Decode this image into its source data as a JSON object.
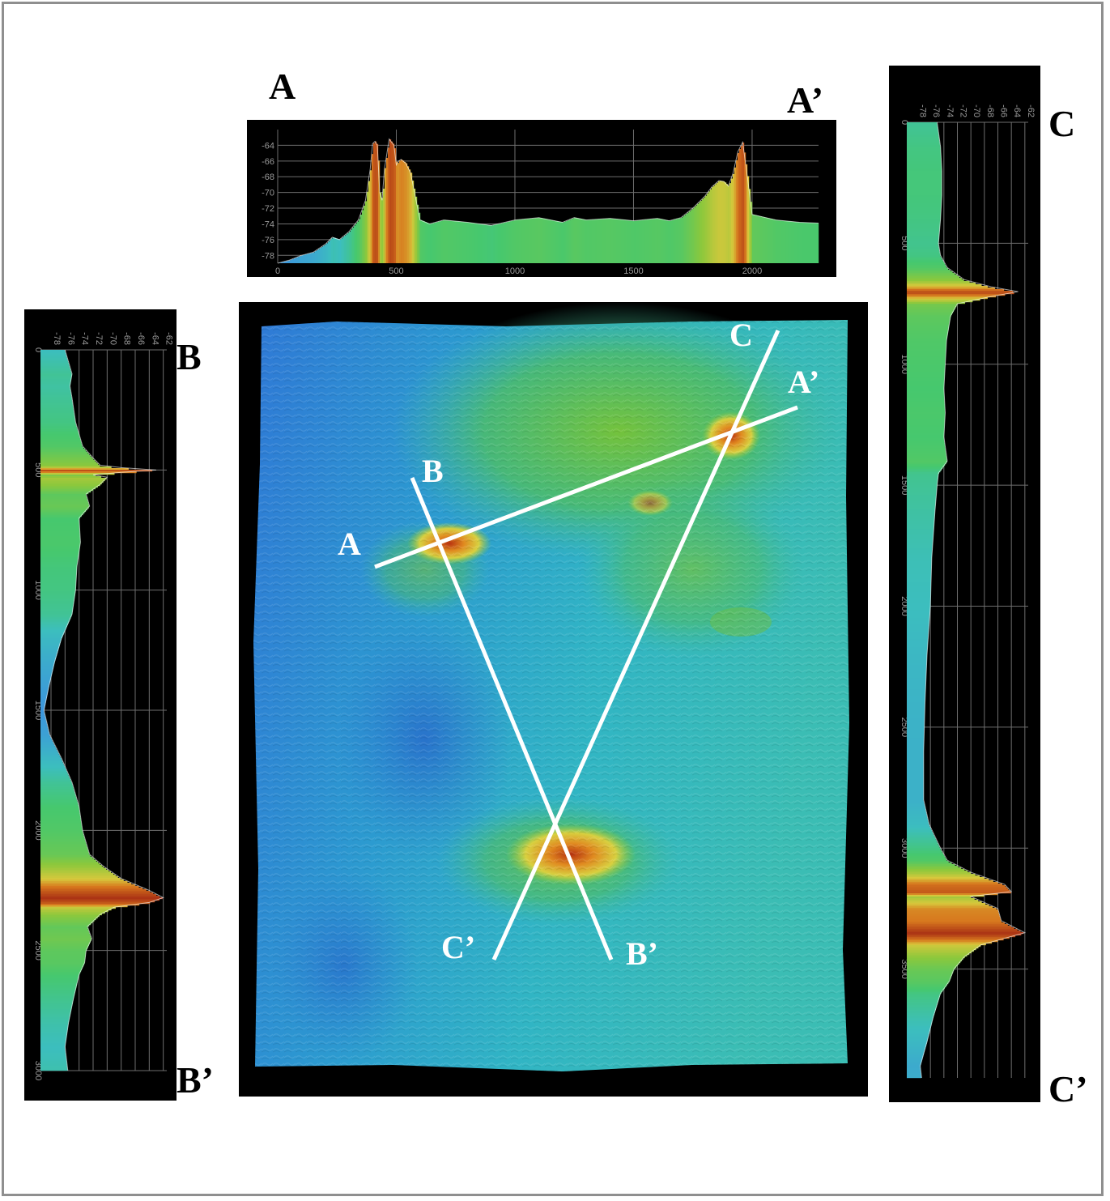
{
  "labels": {
    "a_start": "A",
    "a_end": "A’",
    "b_start": "B",
    "b_end": "B’",
    "c_start": "C",
    "c_end": "C’"
  },
  "colors": {
    "panel_background": "#000000",
    "map_low": "#2e6ed8",
    "map_mid": "#2fb6c8",
    "map_high": "#3fbf5a",
    "peak_yellow": "#e0d040",
    "peak_red": "#c84010",
    "profile_line": "#ffffff",
    "grid": "#6e6e6e"
  },
  "profile_a": {
    "depth_ticks": [
      "-64",
      "-66",
      "-68",
      "-70",
      "-72",
      "-74",
      "-76",
      "-78"
    ],
    "distance_ticks": [
      "0",
      "500",
      "1000",
      "1500",
      "2000"
    ]
  },
  "profile_b": {
    "depth_ticks": [
      "-78",
      "-76",
      "-74",
      "-72",
      "-70",
      "-68",
      "-66",
      "-64",
      "-62"
    ],
    "distance_ticks": [
      "0",
      "500",
      "1000",
      "1500",
      "2000",
      "2500",
      "3000"
    ]
  },
  "profile_c": {
    "depth_ticks": [
      "-78",
      "-76",
      "-74",
      "-72",
      "-70",
      "-68",
      "-66",
      "-64",
      "-62"
    ],
    "distance_ticks": [
      "0",
      "500",
      "1000",
      "1500",
      "2000",
      "2500",
      "3000",
      "3500"
    ]
  },
  "chart_data": [
    {
      "type": "area",
      "xlabel": "",
      "ylabel": "",
      "xlim": [
        0,
        2280
      ],
      "ylim": [
        -79,
        -62
      ],
      "x": [
        0,
        50,
        100,
        150,
        200,
        230,
        260,
        300,
        340,
        370,
        390,
        400,
        410,
        420,
        430,
        440,
        450,
        470,
        490,
        500,
        510,
        520,
        540,
        560,
        580,
        600,
        640,
        700,
        800,
        900,
        1000,
        1100,
        1200,
        1250,
        1300,
        1400,
        1500,
        1600,
        1650,
        1700,
        1750,
        1800,
        1830,
        1860,
        1880,
        1900,
        1920,
        1940,
        1960,
        1980,
        2000,
        2100,
        2200,
        2280
      ],
      "y": [
        -79,
        -78.6,
        -78,
        -77.6,
        -76.6,
        -75.7,
        -76,
        -75,
        -73.5,
        -71,
        -67,
        -63.8,
        -63.5,
        -64,
        -70,
        -71,
        -67,
        -63.2,
        -64,
        -66.5,
        -66,
        -65.8,
        -66.3,
        -67.5,
        -70.5,
        -73.5,
        -74,
        -73.5,
        -73.8,
        -74.2,
        -73.5,
        -73.2,
        -73.8,
        -73.2,
        -73.5,
        -73.3,
        -73.6,
        -73.3,
        -73.6,
        -73.2,
        -72,
        -70.5,
        -69.3,
        -68.5,
        -68.6,
        -69.2,
        -67.5,
        -64.8,
        -63.6,
        -68,
        -72.8,
        -73.5,
        -73.8,
        -73.9
      ]
    },
    {
      "type": "area",
      "xlabel": "",
      "ylabel": "",
      "xlim": [
        0,
        3000
      ],
      "ylim": [
        -79.5,
        -61.5
      ],
      "x": [
        0,
        50,
        100,
        150,
        200,
        300,
        400,
        450,
        480,
        490,
        500,
        510,
        520,
        530,
        560,
        600,
        650,
        700,
        800,
        900,
        1000,
        1100,
        1200,
        1300,
        1400,
        1500,
        1600,
        1700,
        1800,
        1900,
        2000,
        2100,
        2150,
        2200,
        2250,
        2280,
        2300,
        2320,
        2350,
        2400,
        2450,
        2500,
        2550,
        2600,
        2700,
        2800,
        2900,
        3000
      ],
      "y": [
        -76,
        -75.5,
        -75,
        -75.3,
        -75,
        -74.5,
        -73.5,
        -72,
        -71,
        -68,
        -63,
        -68,
        -72,
        -70,
        -71,
        -73,
        -72.5,
        -74,
        -73.8,
        -74.3,
        -74.5,
        -75,
        -76.5,
        -77.5,
        -78.3,
        -79,
        -78.2,
        -76.5,
        -75,
        -74,
        -73.5,
        -72.5,
        -70.5,
        -68,
        -64,
        -62,
        -64,
        -69,
        -71,
        -72.8,
        -72.2,
        -73,
        -73.2,
        -74,
        -74.8,
        -75.5,
        -76,
        -75.6
      ]
    },
    {
      "type": "area",
      "xlabel": "",
      "ylabel": "",
      "xlim": [
        0,
        3950
      ],
      "ylim": [
        -79.5,
        -61.5
      ],
      "x": [
        0,
        100,
        200,
        300,
        400,
        500,
        550,
        600,
        650,
        680,
        700,
        720,
        750,
        800,
        900,
        1000,
        1100,
        1200,
        1300,
        1400,
        1450,
        1500,
        1600,
        1800,
        2000,
        2200,
        2400,
        2600,
        2800,
        2900,
        3000,
        3050,
        3100,
        3150,
        3180,
        3200,
        3250,
        3300,
        3350,
        3400,
        3450,
        3500,
        3550,
        3600,
        3700,
        3800,
        3900,
        3950
      ],
      "y": [
        -75,
        -74.5,
        -74.3,
        -74.3,
        -74.5,
        -74.8,
        -74.5,
        -73.5,
        -71,
        -67,
        -63,
        -67,
        -72,
        -73,
        -73.6,
        -73.8,
        -74,
        -73.8,
        -74,
        -73.5,
        -74.8,
        -75,
        -75.3,
        -75.8,
        -76,
        -76.5,
        -76.8,
        -77,
        -77,
        -76.2,
        -74.5,
        -73.5,
        -70,
        -65,
        -64,
        -70,
        -66,
        -65.5,
        -62,
        -68.5,
        -71,
        -72.5,
        -73.2,
        -74.5,
        -75.6,
        -76.5,
        -77.5,
        -77.3
      ]
    }
  ]
}
